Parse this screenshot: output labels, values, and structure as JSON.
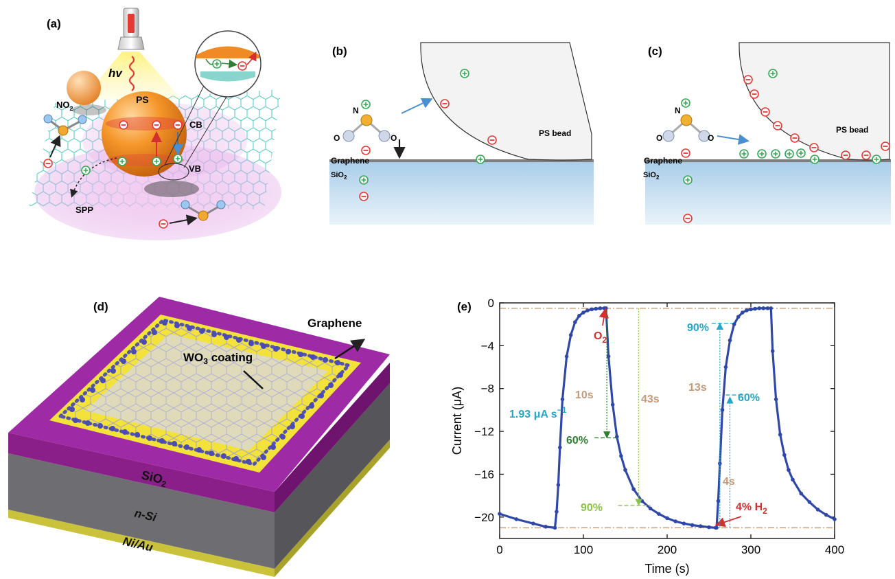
{
  "panel_a": {
    "label": "(a)",
    "hv": "hv",
    "ps": "PS",
    "cb": "CB",
    "vb": "VB",
    "spp": "SPP",
    "no2": "NO",
    "no2_sub": "2"
  },
  "panel_b": {
    "label": "(b)",
    "n": "N",
    "o_left": "O",
    "o_right": "O",
    "graphene": "Graphene",
    "sio2": "SiO",
    "sio2_sub": "2",
    "ps_bead": "PS bead"
  },
  "panel_c": {
    "label": "(c)",
    "n": "N",
    "o_left": "O",
    "o_right": "O",
    "graphene": "Graphene",
    "sio2": "SiO",
    "sio2_sub": "2",
    "ps_bead": "PS bead"
  },
  "panel_d": {
    "label": "(d)",
    "graphene": "Graphene",
    "wo3": "WO",
    "wo3_sub": "3",
    "wo3_rest": " coating",
    "sio2": "SiO",
    "sio2_sub": "2",
    "nsi": "n-Si",
    "niau": "Ni/Au"
  },
  "panel_e": {
    "label": "(e)",
    "annotations": {
      "o2": "O",
      "o2_sub": "2",
      "h2": "4% H",
      "h2_sub": "2",
      "rate": "1.93 μA s",
      "rate_sup": "−1",
      "t10": "10s",
      "t43": "43s",
      "t13": "13s",
      "t4": "4s",
      "p60a": "60%",
      "p90a": "90%",
      "p90b": "90%",
      "p60b": "60%"
    }
  },
  "chart_data": {
    "type": "line",
    "title": "",
    "xlabel": "Time (s)",
    "ylabel": "Current (μA)",
    "xlim": [
      0,
      400
    ],
    "ylim": [
      -22,
      0
    ],
    "xticks": [
      "0",
      "100",
      "200",
      "300",
      "400"
    ],
    "yticks": [
      "0",
      "-4",
      "-8",
      "-12",
      "-16",
      "-20"
    ],
    "series": [
      {
        "x": [
          0,
          20,
          40,
          55,
          66,
          68,
          70,
          72,
          75,
          80,
          85,
          90,
          95,
          100,
          105,
          110,
          115,
          120,
          125,
          127,
          130,
          135,
          140,
          145,
          150,
          160,
          170,
          180,
          190,
          200,
          210,
          220,
          230,
          240,
          250,
          258,
          259,
          261,
          263,
          266,
          270,
          275,
          280,
          285,
          290,
          295,
          300,
          305,
          310,
          315,
          320,
          324,
          326,
          330,
          335,
          340,
          345,
          350,
          360,
          370,
          380,
          390,
          400
        ],
        "y": [
          -19.7,
          -20.2,
          -20.6,
          -20.9,
          -21.0,
          -19.5,
          -17.0,
          -13.5,
          -9.0,
          -5.0,
          -3.0,
          -1.8,
          -1.2,
          -0.9,
          -0.7,
          -0.6,
          -0.55,
          -0.5,
          -0.5,
          -0.5,
          -5.0,
          -9.5,
          -12.5,
          -14.3,
          -15.6,
          -17.4,
          -18.5,
          -19.2,
          -19.7,
          -20.1,
          -20.4,
          -20.6,
          -20.75,
          -20.85,
          -20.95,
          -21.0,
          -21.0,
          -18.5,
          -15.0,
          -10.0,
          -6.0,
          -3.5,
          -2.0,
          -1.3,
          -0.9,
          -0.7,
          -0.6,
          -0.55,
          -0.5,
          -0.5,
          -0.5,
          -0.5,
          -4.5,
          -9.0,
          -12.3,
          -14.2,
          -15.6,
          -16.5,
          -17.8,
          -18.6,
          -19.3,
          -19.8,
          -20.2
        ]
      }
    ],
    "reference_lines": [
      -0.5,
      -21.0
    ],
    "grid": false
  }
}
